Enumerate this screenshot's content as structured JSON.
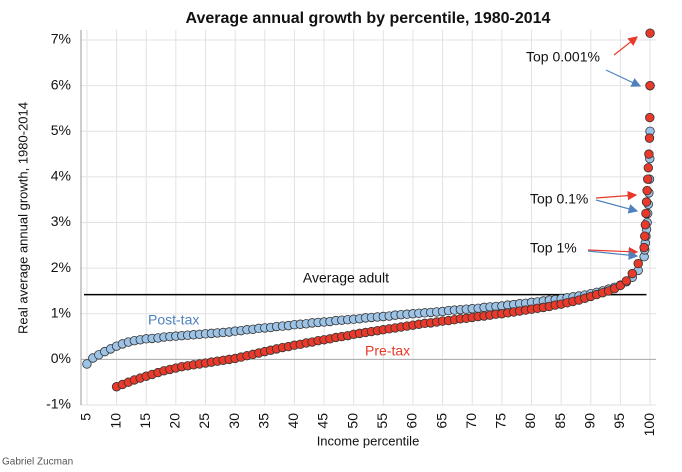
{
  "chart_data": {
    "type": "scatter",
    "title": "Average annual growth by percentile, 1980-2014",
    "x_label": "Income percentile",
    "y_label": "Real average annual growth, 1980-2014",
    "source": "Gabriel Zucman",
    "xlim": [
      4,
      101
    ],
    "ylim": [
      -1,
      7.22
    ],
    "xticks": [
      5,
      10,
      15,
      20,
      25,
      30,
      35,
      40,
      45,
      50,
      55,
      60,
      65,
      70,
      75,
      80,
      85,
      90,
      95,
      100
    ],
    "yticks": [
      {
        "value": -1,
        "label": "-1%"
      },
      {
        "value": 0,
        "label": "0%"
      },
      {
        "value": 1,
        "label": "1%"
      },
      {
        "value": 2,
        "label": "2%"
      },
      {
        "value": 3,
        "label": "3%"
      },
      {
        "value": 4,
        "label": "4%"
      },
      {
        "value": 5,
        "label": "5%"
      },
      {
        "value": 6,
        "label": "6%"
      },
      {
        "value": 7,
        "label": "7%"
      }
    ],
    "grid": true,
    "reference_line": {
      "value": 1.42,
      "label": "Average adult",
      "color": "#000000"
    },
    "annotations": [
      "Top 0.001%",
      "Top 0.1%",
      "Top 1%"
    ],
    "series": [
      {
        "name": "Post-tax",
        "color": "#9dc3e6",
        "label_color": "#4f81bd",
        "x": [
          5,
          6,
          7,
          8,
          9,
          10,
          11,
          12,
          13,
          14,
          15,
          16,
          17,
          18,
          19,
          20,
          21,
          22,
          23,
          24,
          25,
          26,
          27,
          28,
          29,
          30,
          31,
          32,
          33,
          34,
          35,
          36,
          37,
          38,
          39,
          40,
          41,
          42,
          43,
          44,
          45,
          46,
          47,
          48,
          49,
          50,
          51,
          52,
          53,
          54,
          55,
          56,
          57,
          58,
          59,
          60,
          61,
          62,
          63,
          64,
          65,
          66,
          67,
          68,
          69,
          70,
          71,
          72,
          73,
          74,
          75,
          76,
          77,
          78,
          79,
          80,
          81,
          82,
          83,
          84,
          85,
          86,
          87,
          88,
          89,
          90,
          91,
          92,
          93,
          94,
          95,
          96,
          97,
          98,
          99,
          99.1,
          99.2,
          99.3,
          99.4,
          99.5,
          99.6,
          99.7,
          99.8,
          99.9,
          99.95,
          99.99,
          99.999
        ],
        "values": [
          -0.1,
          0.03,
          0.1,
          0.17,
          0.23,
          0.29,
          0.34,
          0.38,
          0.41,
          0.43,
          0.45,
          0.46,
          0.47,
          0.49,
          0.5,
          0.51,
          0.52,
          0.53,
          0.54,
          0.55,
          0.56,
          0.57,
          0.58,
          0.59,
          0.6,
          0.62,
          0.63,
          0.65,
          0.66,
          0.68,
          0.69,
          0.7,
          0.72,
          0.73,
          0.74,
          0.76,
          0.77,
          0.78,
          0.8,
          0.81,
          0.82,
          0.83,
          0.85,
          0.86,
          0.87,
          0.88,
          0.89,
          0.91,
          0.92,
          0.93,
          0.94,
          0.95,
          0.97,
          0.98,
          0.99,
          1.0,
          1.01,
          1.02,
          1.03,
          1.04,
          1.05,
          1.07,
          1.08,
          1.09,
          1.1,
          1.11,
          1.12,
          1.14,
          1.15,
          1.16,
          1.17,
          1.19,
          1.2,
          1.22,
          1.23,
          1.25,
          1.26,
          1.28,
          1.3,
          1.31,
          1.33,
          1.35,
          1.37,
          1.39,
          1.41,
          1.44,
          1.47,
          1.5,
          1.54,
          1.58,
          1.63,
          1.7,
          1.8,
          1.95,
          2.25,
          2.4,
          2.55,
          2.7,
          2.85,
          3.0,
          3.2,
          3.4,
          3.65,
          3.95,
          4.4,
          5.0,
          6.0
        ]
      },
      {
        "name": "Pre-tax",
        "color": "#e8392b",
        "label_color": "#e8392b",
        "x": [
          10,
          11,
          12,
          13,
          14,
          15,
          16,
          17,
          18,
          19,
          20,
          21,
          22,
          23,
          24,
          25,
          26,
          27,
          28,
          29,
          30,
          31,
          32,
          33,
          34,
          35,
          36,
          37,
          38,
          39,
          40,
          41,
          42,
          43,
          44,
          45,
          46,
          47,
          48,
          49,
          50,
          51,
          52,
          53,
          54,
          55,
          56,
          57,
          58,
          59,
          60,
          61,
          62,
          63,
          64,
          65,
          66,
          67,
          68,
          69,
          70,
          71,
          72,
          73,
          74,
          75,
          76,
          77,
          78,
          79,
          80,
          81,
          82,
          83,
          84,
          85,
          86,
          87,
          88,
          89,
          90,
          91,
          92,
          93,
          94,
          95,
          96,
          97,
          98,
          99,
          99.1,
          99.2,
          99.3,
          99.4,
          99.5,
          99.6,
          99.7,
          99.8,
          99.9,
          99.95,
          99.99,
          99.999
        ],
        "values": [
          -0.6,
          -0.55,
          -0.5,
          -0.45,
          -0.41,
          -0.37,
          -0.33,
          -0.29,
          -0.25,
          -0.22,
          -0.19,
          -0.16,
          -0.14,
          -0.12,
          -0.1,
          -0.08,
          -0.06,
          -0.04,
          -0.02,
          0.0,
          0.02,
          0.05,
          0.08,
          0.11,
          0.14,
          0.17,
          0.2,
          0.23,
          0.26,
          0.28,
          0.31,
          0.33,
          0.36,
          0.38,
          0.41,
          0.43,
          0.45,
          0.48,
          0.5,
          0.52,
          0.55,
          0.57,
          0.59,
          0.61,
          0.63,
          0.65,
          0.67,
          0.69,
          0.71,
          0.73,
          0.75,
          0.77,
          0.79,
          0.8,
          0.82,
          0.84,
          0.85,
          0.87,
          0.89,
          0.9,
          0.92,
          0.94,
          0.95,
          0.97,
          0.99,
          1.0,
          1.02,
          1.04,
          1.06,
          1.08,
          1.1,
          1.12,
          1.14,
          1.16,
          1.19,
          1.21,
          1.24,
          1.27,
          1.3,
          1.34,
          1.38,
          1.42,
          1.46,
          1.5,
          1.55,
          1.62,
          1.72,
          1.88,
          2.1,
          2.45,
          2.7,
          2.95,
          3.2,
          3.45,
          3.7,
          3.95,
          4.2,
          4.5,
          4.85,
          5.3,
          6.0,
          7.15
        ]
      }
    ]
  }
}
